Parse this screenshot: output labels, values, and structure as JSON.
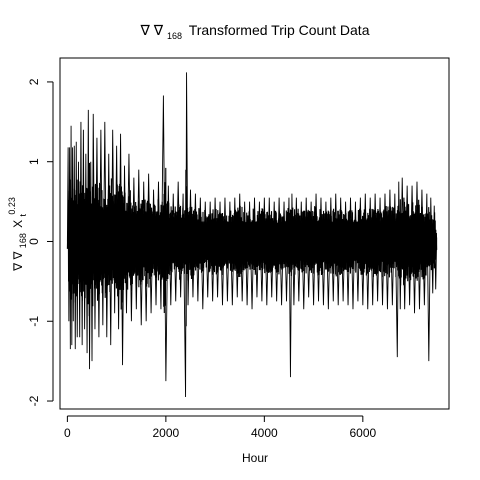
{
  "chart_data": {
    "type": "line",
    "title_symbol": "∇ ∇",
    "title_subscript": "168",
    "title_rest": "Transformed Trip Count Data",
    "xlabel": "Hour",
    "ylabel_symbol": "∇ ∇",
    "ylabel_subscript": "168",
    "ylabel_var": "X",
    "ylabel_sub_t": "t",
    "ylabel_sup": "0.23",
    "xlim": [
      -150,
      7750
    ],
    "ylim": [
      -2.1,
      2.3
    ],
    "x_ticks": [
      0,
      2000,
      4000,
      6000
    ],
    "x_tick_labels": [
      "0",
      "2000",
      "4000",
      "6000"
    ],
    "y_ticks": [
      -2,
      -1,
      0,
      1,
      2
    ],
    "y_tick_labels": [
      "-2",
      "-1",
      "0",
      "1",
      "2"
    ],
    "grid": false,
    "legend": "none",
    "line_color": "#000000",
    "series": [
      {
        "points": [
          [
            0,
            0.0
          ],
          [
            15,
            1.18
          ],
          [
            30,
            -1.0
          ],
          [
            45,
            1.18
          ],
          [
            60,
            -1.35
          ],
          [
            75,
            1.45
          ],
          [
            90,
            -1.3
          ],
          [
            105,
            1.18
          ],
          [
            120,
            -1.0
          ],
          [
            140,
            1.2
          ],
          [
            160,
            -1.35
          ],
          [
            180,
            1.25
          ],
          [
            200,
            -1.2
          ],
          [
            225,
            1.0
          ],
          [
            250,
            -1.2
          ],
          [
            275,
            1.5
          ],
          [
            300,
            -1.3
          ],
          [
            325,
            1.4
          ],
          [
            350,
            -1.1
          ],
          [
            375,
            1.1
          ],
          [
            400,
            -1.4
          ],
          [
            425,
            1.65
          ],
          [
            450,
            -1.6
          ],
          [
            475,
            1.0
          ],
          [
            500,
            -1.5
          ],
          [
            525,
            1.6
          ],
          [
            560,
            -1.1
          ],
          [
            600,
            1.3
          ],
          [
            640,
            -1.2
          ],
          [
            680,
            1.4
          ],
          [
            720,
            -1.05
          ],
          [
            760,
            1.5
          ],
          [
            800,
            -1.2
          ],
          [
            840,
            1.1
          ],
          [
            880,
            -1.3
          ],
          [
            920,
            1.4
          ],
          [
            960,
            -0.9
          ],
          [
            1000,
            1.2
          ],
          [
            1040,
            -1.1
          ],
          [
            1080,
            1.35
          ],
          [
            1120,
            -1.55
          ],
          [
            1160,
            0.95
          ],
          [
            1200,
            -0.9
          ],
          [
            1250,
            1.1
          ],
          [
            1300,
            -1.0
          ],
          [
            1350,
            0.8
          ],
          [
            1400,
            -0.85
          ],
          [
            1450,
            0.9
          ],
          [
            1500,
            -1.05
          ],
          [
            1550,
            0.75
          ],
          [
            1600,
            -1.0
          ],
          [
            1650,
            0.85
          ],
          [
            1700,
            -0.9
          ],
          [
            1750,
            0.65
          ],
          [
            1800,
            -0.8
          ],
          [
            1850,
            0.75
          ],
          [
            1900,
            -0.85
          ],
          [
            1950,
            1.83
          ],
          [
            2000,
            -1.75
          ],
          [
            2050,
            0.7
          ],
          [
            2100,
            -0.8
          ],
          [
            2150,
            0.6
          ],
          [
            2200,
            -0.75
          ],
          [
            2250,
            0.75
          ],
          [
            2300,
            -0.7
          ],
          [
            2350,
            0.6
          ],
          [
            2400,
            -1.95
          ],
          [
            2420,
            2.12
          ],
          [
            2450,
            -0.8
          ],
          [
            2500,
            0.65
          ],
          [
            2550,
            -0.7
          ],
          [
            2600,
            0.6
          ],
          [
            2650,
            -0.75
          ],
          [
            2700,
            0.55
          ],
          [
            2750,
            -0.85
          ],
          [
            2800,
            0.5
          ],
          [
            2850,
            -0.7
          ],
          [
            2900,
            0.5
          ],
          [
            2950,
            -0.75
          ],
          [
            3000,
            0.55
          ],
          [
            3050,
            -0.7
          ],
          [
            3100,
            0.5
          ],
          [
            3150,
            -0.8
          ],
          [
            3200,
            0.55
          ],
          [
            3250,
            -0.75
          ],
          [
            3300,
            0.5
          ],
          [
            3350,
            -0.8
          ],
          [
            3400,
            0.55
          ],
          [
            3450,
            -0.7
          ],
          [
            3500,
            0.6
          ],
          [
            3550,
            -0.75
          ],
          [
            3600,
            0.5
          ],
          [
            3650,
            -0.8
          ],
          [
            3700,
            0.5
          ],
          [
            3750,
            -0.85
          ],
          [
            3800,
            0.55
          ],
          [
            3850,
            -0.7
          ],
          [
            3900,
            0.5
          ],
          [
            3950,
            -0.75
          ],
          [
            4000,
            0.55
          ],
          [
            4050,
            -0.8
          ],
          [
            4100,
            0.55
          ],
          [
            4150,
            -0.7
          ],
          [
            4200,
            0.5
          ],
          [
            4250,
            -0.75
          ],
          [
            4300,
            0.55
          ],
          [
            4350,
            -0.8
          ],
          [
            4400,
            0.5
          ],
          [
            4450,
            -0.75
          ],
          [
            4500,
            0.55
          ],
          [
            4530,
            -1.7
          ],
          [
            4560,
            0.6
          ],
          [
            4600,
            -0.8
          ],
          [
            4650,
            0.55
          ],
          [
            4700,
            -0.75
          ],
          [
            4750,
            0.5
          ],
          [
            4800,
            -0.85
          ],
          [
            4850,
            0.55
          ],
          [
            4900,
            -0.7
          ],
          [
            4950,
            0.5
          ],
          [
            5000,
            -0.8
          ],
          [
            5050,
            0.6
          ],
          [
            5100,
            -0.75
          ],
          [
            5150,
            0.55
          ],
          [
            5200,
            -0.8
          ],
          [
            5250,
            0.5
          ],
          [
            5300,
            -0.85
          ],
          [
            5350,
            0.55
          ],
          [
            5400,
            -0.75
          ],
          [
            5450,
            0.6
          ],
          [
            5500,
            -0.8
          ],
          [
            5550,
            0.55
          ],
          [
            5600,
            -0.75
          ],
          [
            5650,
            0.5
          ],
          [
            5700,
            -0.8
          ],
          [
            5750,
            0.55
          ],
          [
            5800,
            -0.85
          ],
          [
            5850,
            0.5
          ],
          [
            5900,
            -0.75
          ],
          [
            5950,
            0.55
          ],
          [
            6000,
            -0.8
          ],
          [
            6050,
            0.6
          ],
          [
            6100,
            -0.85
          ],
          [
            6150,
            0.55
          ],
          [
            6200,
            -0.8
          ],
          [
            6250,
            0.6
          ],
          [
            6300,
            -0.75
          ],
          [
            6350,
            0.55
          ],
          [
            6400,
            -0.8
          ],
          [
            6450,
            0.6
          ],
          [
            6500,
            -0.85
          ],
          [
            6550,
            0.65
          ],
          [
            6600,
            -0.8
          ],
          [
            6650,
            0.6
          ],
          [
            6700,
            -1.45
          ],
          [
            6730,
            0.75
          ],
          [
            6760,
            -0.85
          ],
          [
            6800,
            0.8
          ],
          [
            6850,
            -0.85
          ],
          [
            6900,
            0.7
          ],
          [
            6950,
            -0.8
          ],
          [
            7000,
            0.7
          ],
          [
            7050,
            -0.9
          ],
          [
            7100,
            0.75
          ],
          [
            7150,
            -0.85
          ],
          [
            7200,
            0.65
          ],
          [
            7250,
            -0.8
          ],
          [
            7300,
            0.6
          ],
          [
            7340,
            -1.5
          ],
          [
            7380,
            0.55
          ],
          [
            7420,
            -0.65
          ],
          [
            7450,
            0.45
          ],
          [
            7480,
            -0.6
          ],
          [
            7500,
            0.05
          ]
        ]
      }
    ]
  }
}
